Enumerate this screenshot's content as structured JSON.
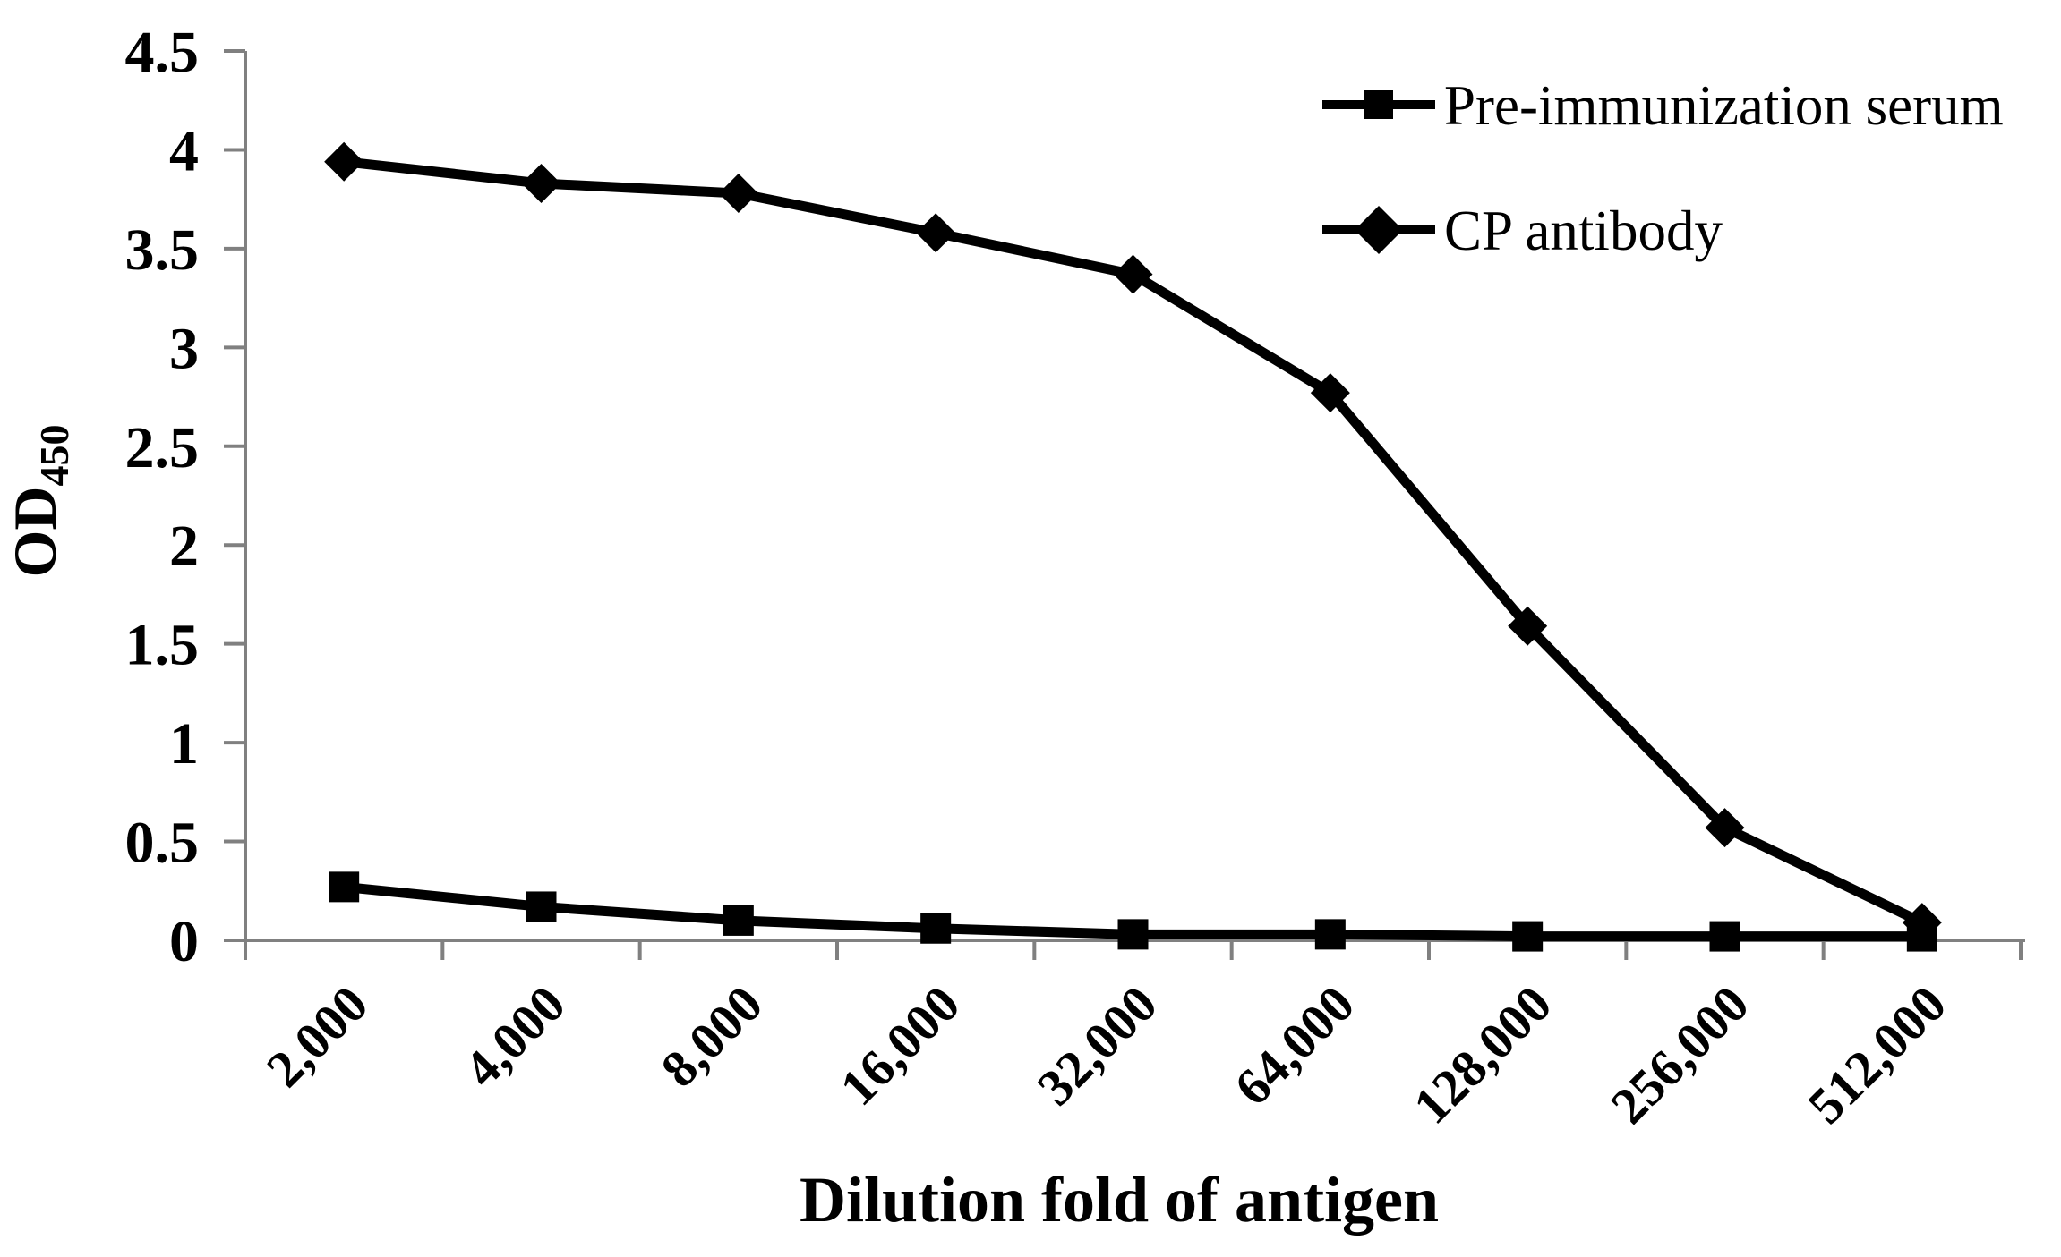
{
  "chart_data": {
    "type": "line",
    "title": "",
    "xlabel": "Dilution fold of antigen",
    "ylabel": "OD",
    "ylabel_subscript": "450",
    "categories": [
      "2,000",
      "4,000",
      "8,000",
      "16,000",
      "32,000",
      "64,000",
      "128,000",
      "256,000",
      "512,000"
    ],
    "series": [
      {
        "name": "Pre-immunization serum",
        "marker": "square",
        "values": [
          0.27,
          0.17,
          0.1,
          0.06,
          0.03,
          0.03,
          0.02,
          0.02,
          0.02
        ]
      },
      {
        "name": "CP antibody",
        "marker": "diamond",
        "values": [
          3.94,
          3.83,
          3.78,
          3.58,
          3.37,
          2.77,
          1.59,
          0.57,
          0.09
        ]
      }
    ],
    "ylim": [
      0,
      4.5
    ],
    "ytick_step": 0.5,
    "ytick_labels": [
      "0",
      "0.5",
      "1",
      "1.5",
      "2",
      "2.5",
      "3",
      "3.5",
      "4",
      "4.5"
    ],
    "grid": false,
    "legend_position": "top-right",
    "x_labels_rotation_deg": -45,
    "colors": {
      "series": "#000000",
      "axis": "#808080",
      "background": "#ffffff"
    }
  }
}
